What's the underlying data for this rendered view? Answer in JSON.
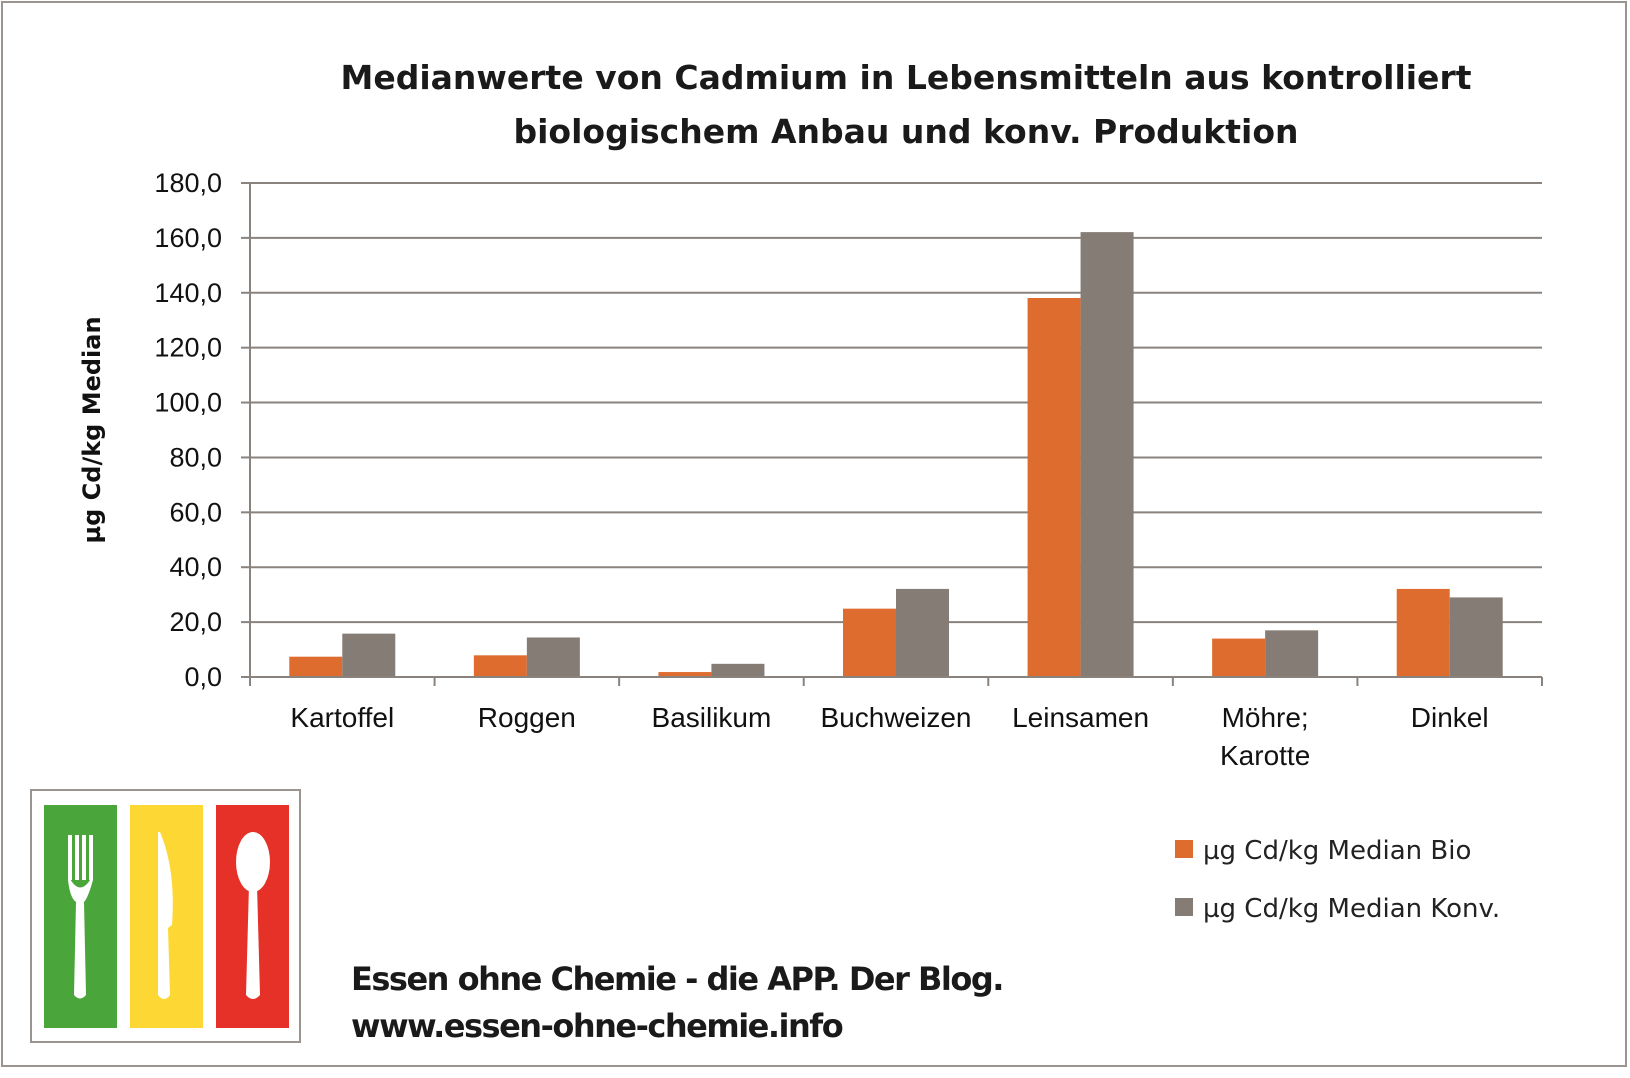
{
  "chart_data": {
    "type": "bar",
    "title": [
      "Medianwerte von Cadmium in Lebensmitteln aus kontrolliert",
      "biologischem Anbau und konv. Produktion"
    ],
    "ylabel": "µg Cd/kg Median",
    "xlabel": "",
    "ylim": [
      0,
      180
    ],
    "yticks": [
      "0,0",
      "20,0",
      "40,0",
      "60,0",
      "80,0",
      "100,0",
      "120,0",
      "140,0",
      "160,0",
      "180,0"
    ],
    "grid": true,
    "legend_placement": "bottom-right",
    "categories": [
      [
        "Kartoffel"
      ],
      [
        "Roggen"
      ],
      [
        "Basilikum"
      ],
      [
        "Buchweizen"
      ],
      [
        "Leinsamen"
      ],
      [
        "Möhre;",
        "Karotte"
      ],
      [
        "Dinkel"
      ]
    ],
    "series": [
      {
        "name": "µg Cd/kg Median Bio",
        "color": "#de6c2f",
        "values": [
          7.4,
          7.9,
          1.8,
          24.9,
          138.1,
          14.0,
          32.1
        ]
      },
      {
        "name": "µg Cd/kg Median Konv.",
        "color": "#857c75",
        "values": [
          15.8,
          14.4,
          4.8,
          32.1,
          162.1,
          17.0,
          29.0
        ]
      }
    ]
  },
  "footer": {
    "line1": "Essen ohne Chemie - die APP. Der Blog.",
    "line2": "www.essen-ohne-chemie.info"
  },
  "logo": {
    "colors": [
      "#4aa53b",
      "#fdd835",
      "#e53128"
    ],
    "icons": [
      "fork-icon",
      "knife-icon",
      "spoon-icon"
    ]
  }
}
